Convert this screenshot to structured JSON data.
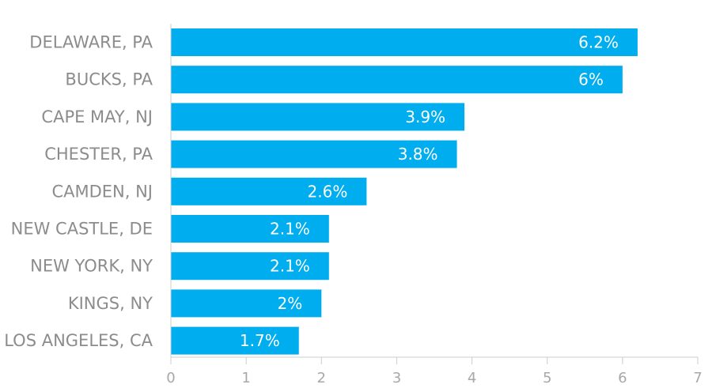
{
  "chart_data": {
    "type": "bar",
    "orientation": "horizontal",
    "categories": [
      "DELAWARE, PA",
      "BUCKS, PA",
      "CAPE MAY, NJ",
      "CHESTER, PA",
      "CAMDEN, NJ",
      "NEW CASTLE, DE",
      "NEW YORK, NY",
      "KINGS, NY",
      "LOS ANGELES, CA"
    ],
    "values": [
      6.2,
      6,
      3.9,
      3.8,
      2.6,
      2.1,
      2.1,
      2,
      1.7
    ],
    "data_labels": [
      "6.2%",
      "6%",
      "3.9%",
      "3.8%",
      "2.6%",
      "2.1%",
      "2.1%",
      "2%",
      "1.7%"
    ],
    "xticks": [
      "0",
      "1",
      "2",
      "3",
      "4",
      "5",
      "6",
      "7"
    ],
    "xlim": [
      0,
      7
    ],
    "title": "",
    "xlabel": "",
    "ylabel": "",
    "grid": false,
    "legend": "none",
    "bar_color": "#00adef",
    "axis_color": "#cccccc"
  }
}
